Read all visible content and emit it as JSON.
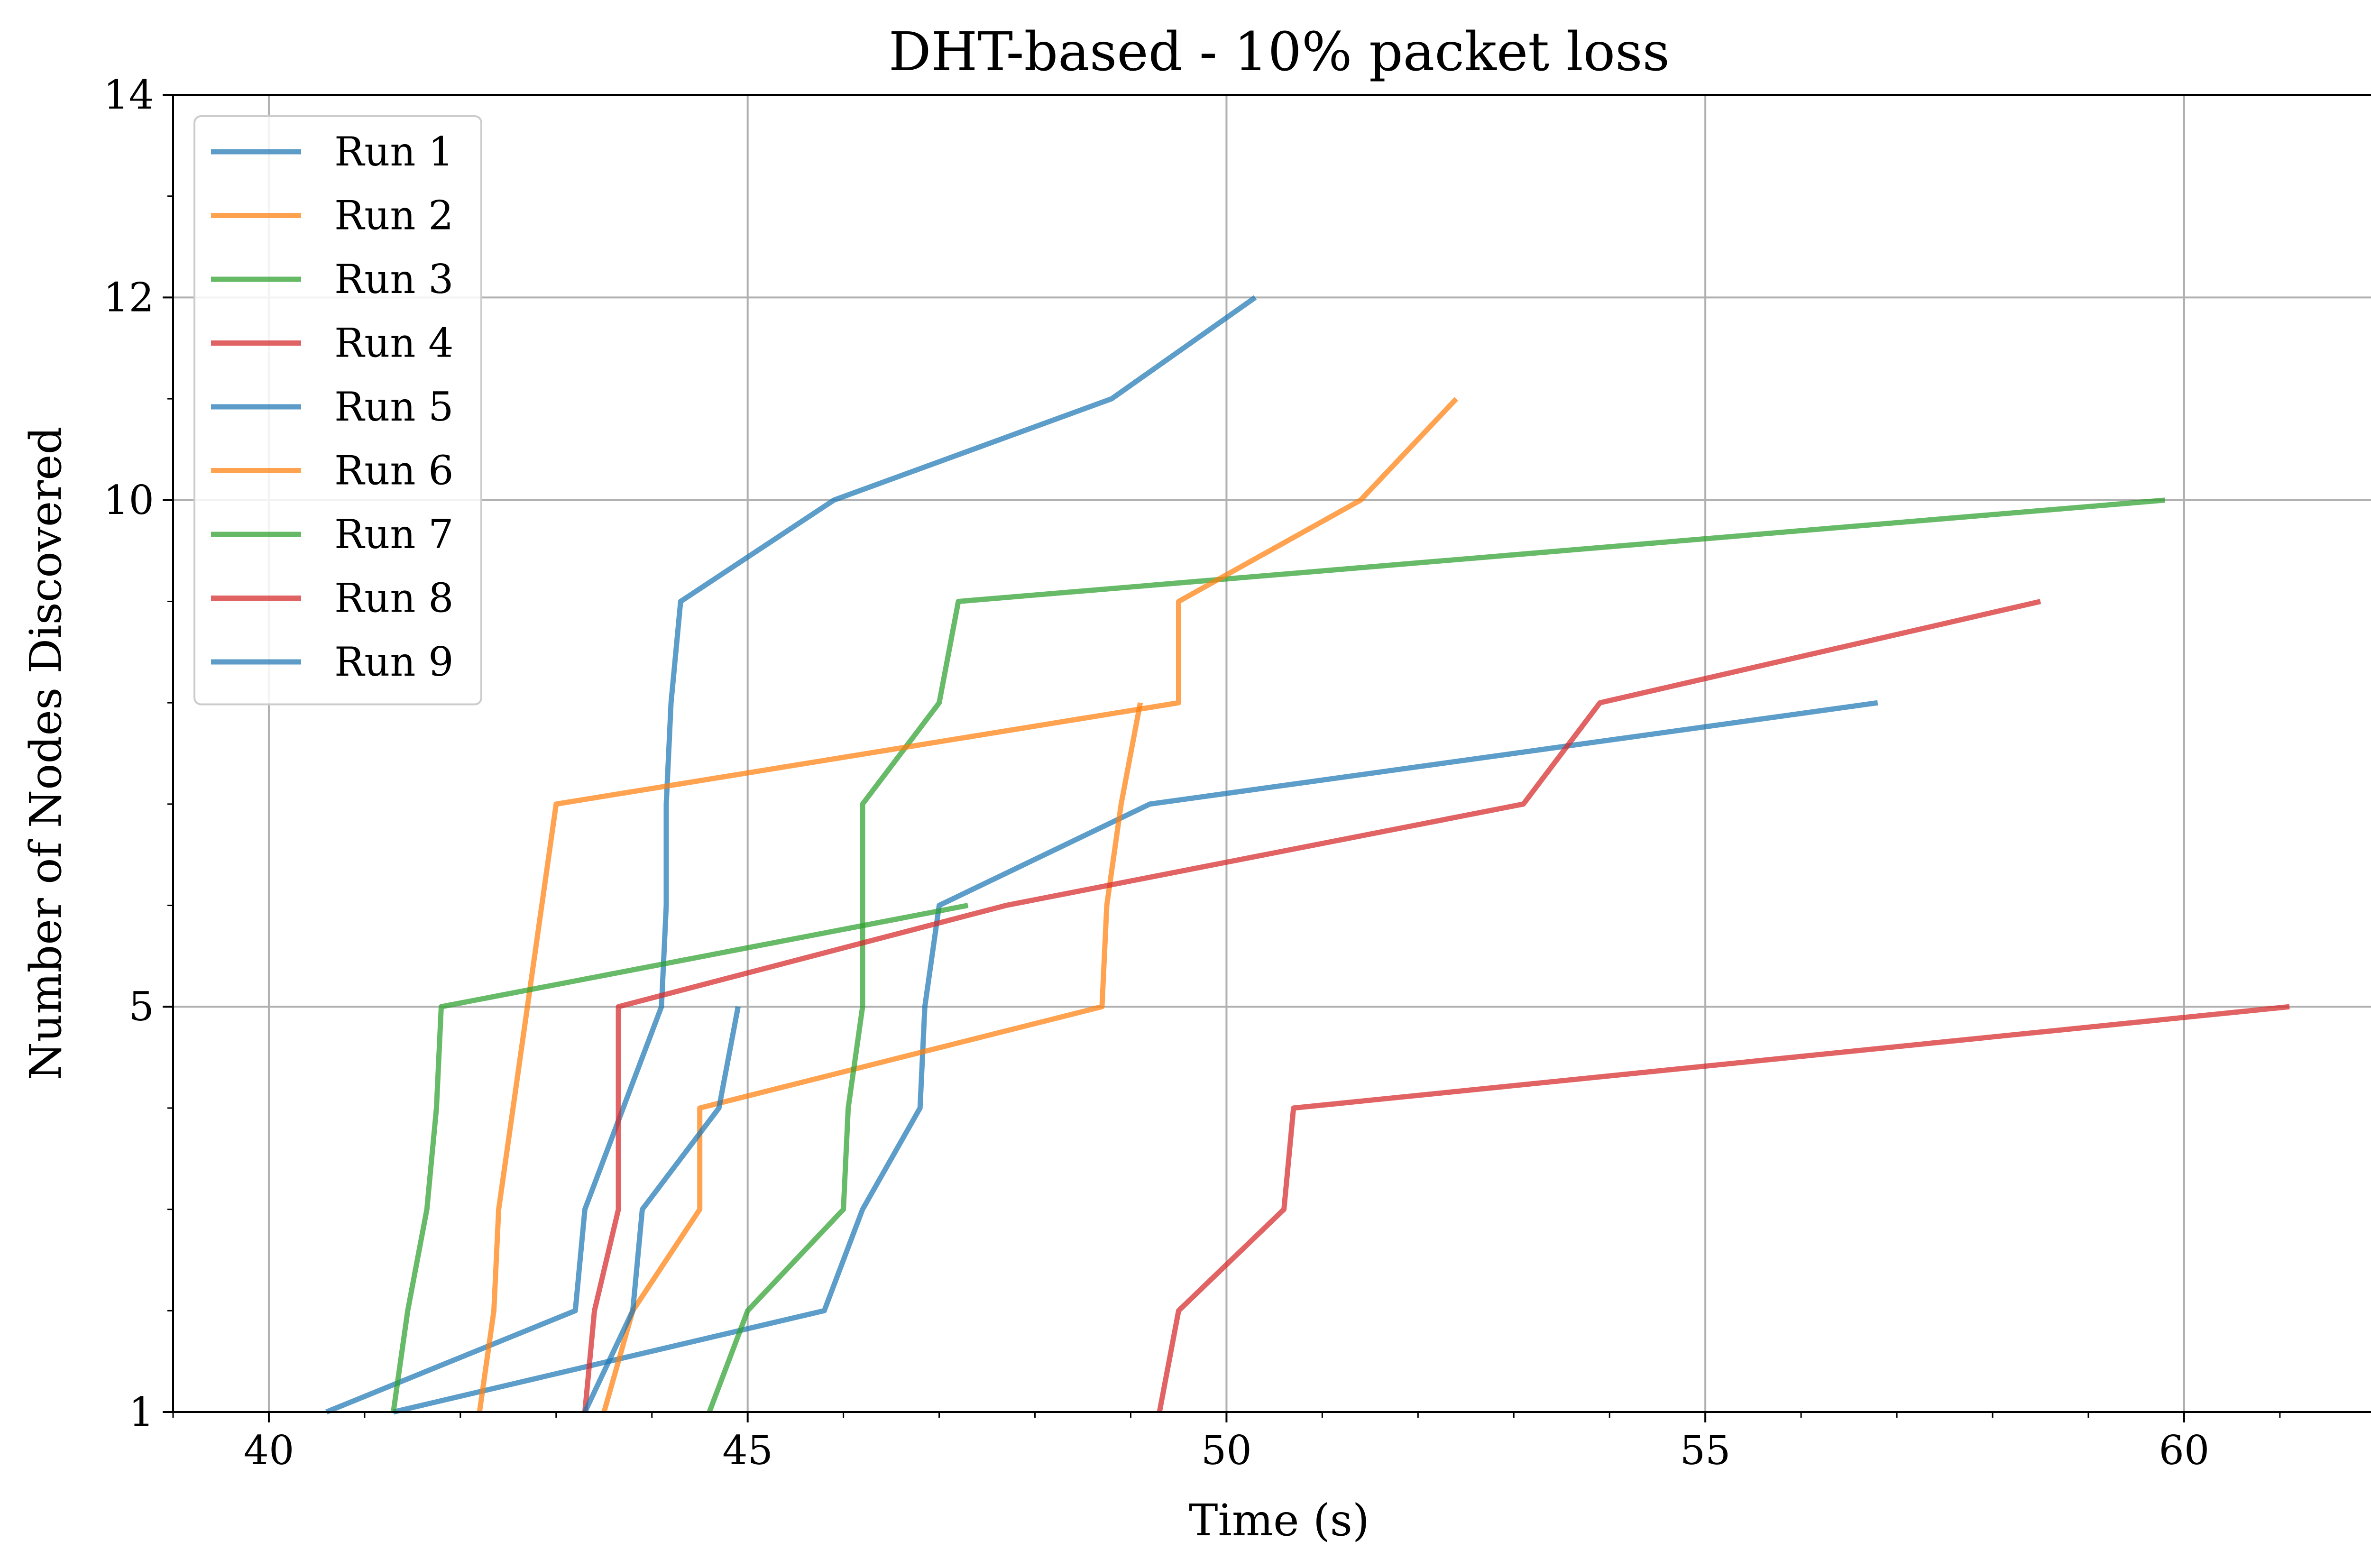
{
  "chart_data": {
    "type": "line",
    "title": "DHT-based - 10% packet loss",
    "xlabel": "Time (s)",
    "ylabel": "Number of Nodes Discovered",
    "xlim": [
      39,
      62.1
    ],
    "ylim": [
      1,
      14
    ],
    "xticks": [
      40,
      45,
      50,
      55,
      60
    ],
    "xtick_labels": [
      "40",
      "45",
      "50",
      "55",
      "60"
    ],
    "yticks": [
      1,
      5,
      10,
      12,
      14
    ],
    "ytick_labels": [
      "1",
      "5",
      "10",
      "12",
      "14"
    ],
    "grid": true,
    "legend_position": "upper-left",
    "series": [
      {
        "name": "Run 1",
        "color": "#1f77b4",
        "x": [
          41.3,
          45.8,
          46.2,
          46.8,
          46.85,
          47.0,
          49.2,
          56.8
        ],
        "y": [
          1,
          2,
          3,
          4,
          5,
          6,
          7,
          8
        ]
      },
      {
        "name": "Run 2",
        "color": "#ff7f0e",
        "x": [
          43.5,
          43.8,
          44.5,
          44.5,
          48.7,
          48.75,
          48.9,
          49.1
        ],
        "y": [
          1,
          2,
          3,
          4,
          5,
          6,
          7,
          8
        ]
      },
      {
        "name": "Run 3",
        "color": "#2ca02c",
        "x": [
          44.6,
          45.0,
          46.0,
          46.05,
          46.2,
          46.2,
          47.0,
          47.2,
          59.8
        ],
        "y": [
          1,
          2,
          3,
          4,
          5,
          7,
          8,
          9,
          10
        ]
      },
      {
        "name": "Run 4",
        "color": "#d62728",
        "x": [
          49.3,
          49.5,
          50.6,
          50.7,
          61.1
        ],
        "y": [
          1,
          2,
          3,
          4,
          5
        ]
      },
      {
        "name": "Run 5",
        "color": "#1f77b4",
        "x": [
          40.6,
          43.2,
          43.3,
          44.1,
          44.15,
          44.15,
          44.2,
          44.3,
          45.9,
          48.8,
          50.3
        ],
        "y": [
          1,
          2,
          3,
          5,
          6,
          7,
          8,
          9,
          10,
          11,
          12
        ]
      },
      {
        "name": "Run 6",
        "color": "#ff7f0e",
        "x": [
          42.2,
          42.35,
          42.4,
          42.55,
          42.7,
          43.0,
          49.5,
          49.5,
          51.4,
          52.4
        ],
        "y": [
          1,
          2,
          3,
          4,
          5,
          7,
          8,
          9,
          10,
          11
        ]
      },
      {
        "name": "Run 7",
        "color": "#2ca02c",
        "x": [
          41.3,
          41.45,
          41.65,
          41.75,
          41.8,
          47.3
        ],
        "y": [
          1,
          2,
          3,
          4,
          5,
          6
        ]
      },
      {
        "name": "Run 8",
        "color": "#d62728",
        "x": [
          43.3,
          43.4,
          43.65,
          43.65,
          47.7,
          53.1,
          53.9,
          58.5
        ],
        "y": [
          1,
          2,
          3,
          5,
          6,
          7,
          8,
          9
        ]
      },
      {
        "name": "Run 9",
        "color": "#1f77b4",
        "x": [
          43.3,
          43.8,
          43.9,
          44.7,
          44.9
        ],
        "y": [
          1,
          2,
          3,
          4,
          5
        ]
      }
    ]
  }
}
